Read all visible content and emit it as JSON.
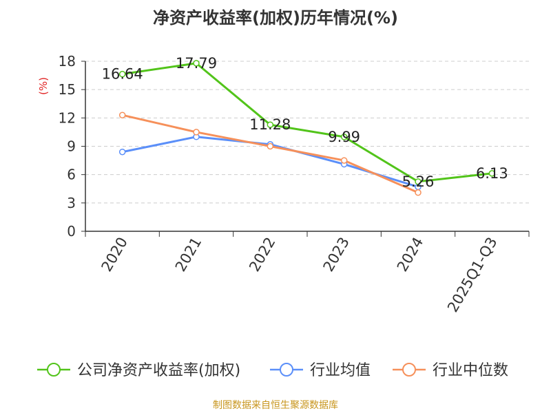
{
  "title": "净资产收益率(加权)历年情况(%)",
  "footer": "制图数据来自恒生聚源数据库",
  "chart_data": {
    "type": "line",
    "title": "净资产收益率(加权)历年情况(%)",
    "xlabel": "",
    "ylabel": "(%)",
    "ylim": [
      0,
      18
    ],
    "yticks": [
      0,
      3,
      6,
      9,
      12,
      15,
      18
    ],
    "categories": [
      "2020",
      "2021",
      "2022",
      "2023",
      "2024",
      "2025Q1-Q3"
    ],
    "grid": true,
    "legend_position": "bottom",
    "series": [
      {
        "name": "公司净资产收益率(加权)",
        "color": "#52c41a",
        "values": [
          16.64,
          17.79,
          11.28,
          9.99,
          5.26,
          6.13
        ],
        "labels": [
          "16.64",
          "17.79",
          "11.28",
          "9.99",
          "5.26",
          "6.13"
        ]
      },
      {
        "name": "行业均值",
        "color": "#5b8ff9",
        "values": [
          8.4,
          10.0,
          9.2,
          7.1,
          4.7,
          null
        ]
      },
      {
        "name": "行业中位数",
        "color": "#f6905a",
        "values": [
          12.3,
          10.5,
          9.0,
          7.5,
          4.1,
          null
        ]
      }
    ]
  }
}
